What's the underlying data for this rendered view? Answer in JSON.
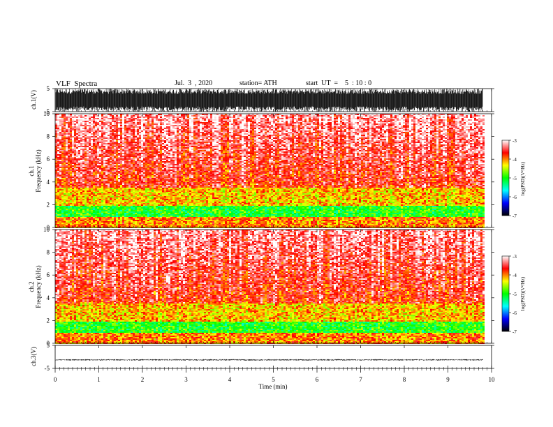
{
  "header": {
    "title": "VLF  Spectra",
    "date": "Jul.  3  , 2020",
    "station": "station= ATH",
    "start_ut": "start  UT  =    5  : 10 : 0"
  },
  "chart_data": [
    {
      "type": "line",
      "title": "",
      "ylabel": "ch.1(V)",
      "ylim": [
        -5,
        5
      ],
      "yticks": [
        "5",
        "-5"
      ],
      "series_color": "#000000",
      "amplitude_range": [
        -5,
        5
      ]
    },
    {
      "type": "heatmap",
      "ylabel_line1": "ch.1",
      "ylabel_line2": "Frequency  (kHz)",
      "ylim": [
        0,
        10
      ],
      "yticks": [
        "0",
        "2",
        "4",
        "6",
        "8",
        "10"
      ],
      "colorbar": {
        "label": "log(PSD)(V²/Hz)",
        "range": [
          -7,
          -3
        ],
        "ticks": [
          "-3",
          "-4",
          "-5",
          "-6",
          "-7"
        ],
        "colors": [
          "#000000",
          "#0000ff",
          "#00ffff",
          "#00ff00",
          "#ffff00",
          "#ff0000",
          "#ffffff"
        ]
      },
      "bands": [
        {
          "freq_khz": [
            3.5,
            10
          ],
          "log_psd": -3.5,
          "note": "red/white"
        },
        {
          "freq_khz": [
            2.0,
            3.5
          ],
          "log_psd": -4.2,
          "note": "yellow"
        },
        {
          "freq_khz": [
            1.0,
            2.0
          ],
          "log_psd": -5.0,
          "note": "green"
        },
        {
          "freq_khz": [
            0,
            1.0
          ],
          "log_psd": -4.0,
          "note": "red/yellow"
        }
      ]
    },
    {
      "type": "heatmap",
      "ylabel_line1": "ch.2",
      "ylabel_line2": "Frequency  (kHz)",
      "ylim": [
        0,
        10
      ],
      "yticks": [
        "0",
        "2",
        "4",
        "6",
        "8",
        "10"
      ],
      "colorbar": {
        "label": "log(PSD)(V²/Hz)",
        "range": [
          -7,
          -3
        ],
        "ticks": [
          "-3",
          "-4",
          "-5",
          "-6",
          "-7"
        ],
        "colors": [
          "#000000",
          "#0000ff",
          "#00ffff",
          "#00ff00",
          "#ffff00",
          "#ff0000",
          "#ffffff"
        ]
      },
      "bands": [
        {
          "freq_khz": [
            3.5,
            10
          ],
          "log_psd": -3.5,
          "note": "red/white"
        },
        {
          "freq_khz": [
            2.0,
            3.5
          ],
          "log_psd": -4.2,
          "note": "yellow"
        },
        {
          "freq_khz": [
            1.0,
            2.0
          ],
          "log_psd": -5.0,
          "note": "green"
        },
        {
          "freq_khz": [
            0,
            1.0
          ],
          "log_psd": -4.0,
          "note": "red/yellow"
        }
      ]
    },
    {
      "type": "line",
      "title": "",
      "ylabel": "ch.3(V)",
      "ylim": [
        -5,
        5
      ],
      "yticks": [
        "5",
        "-5"
      ],
      "series_color": "#000000",
      "level": -1.3,
      "amplitude": 0.3
    }
  ],
  "xaxis": {
    "label": "Time  (min)",
    "range": [
      0,
      10
    ],
    "ticks": [
      "0",
      "1",
      "2",
      "3",
      "4",
      "5",
      "6",
      "7",
      "8",
      "9",
      "10"
    ],
    "data_end": 9.8
  }
}
